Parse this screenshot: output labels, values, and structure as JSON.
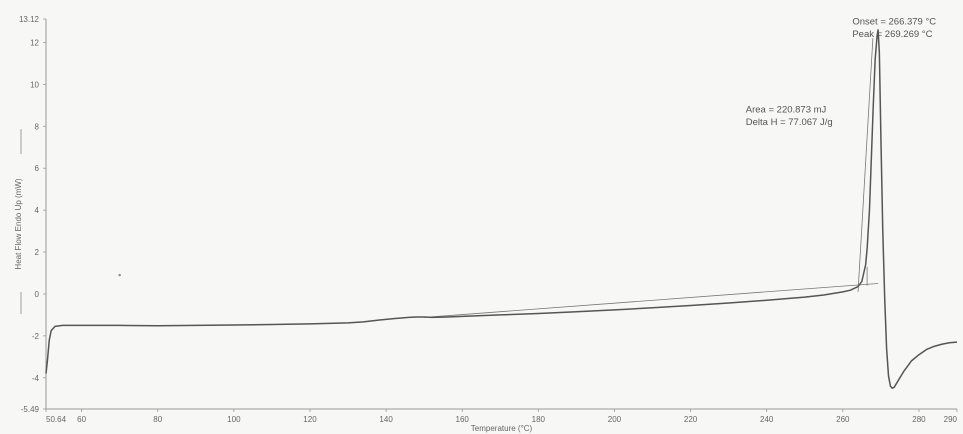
{
  "chart_data": {
    "type": "line",
    "xlabel": "Temperature (°C)",
    "ylabel": "Heat Flow Endo Up (mW)",
    "xlim": [
      50.64,
      290
    ],
    "ylim": [
      -5.49,
      13.12
    ],
    "grid": false,
    "x_ticks": [
      {
        "value": 50.64,
        "label": "50.64"
      },
      {
        "value": 60,
        "label": "60"
      },
      {
        "value": 80,
        "label": "80"
      },
      {
        "value": 100,
        "label": "100"
      },
      {
        "value": 120,
        "label": "120"
      },
      {
        "value": 140,
        "label": "140"
      },
      {
        "value": 160,
        "label": "160"
      },
      {
        "value": 180,
        "label": "180"
      },
      {
        "value": 200,
        "label": "200"
      },
      {
        "value": 220,
        "label": "220"
      },
      {
        "value": 240,
        "label": "240"
      },
      {
        "value": 260,
        "label": "260"
      },
      {
        "value": 280,
        "label": "280"
      },
      {
        "value": 290,
        "label": "290"
      }
    ],
    "y_ticks": [
      {
        "value": 13.12,
        "label": "13.12"
      },
      {
        "value": 12,
        "label": "12"
      },
      {
        "value": 10,
        "label": "10"
      },
      {
        "value": 8,
        "label": "8"
      },
      {
        "value": 6,
        "label": "6"
      },
      {
        "value": 4,
        "label": "4"
      },
      {
        "value": 2,
        "label": "2"
      },
      {
        "value": 0,
        "label": "0"
      },
      {
        "value": -2,
        "label": "-2"
      },
      {
        "value": -4,
        "label": "-4"
      },
      {
        "value": -5.49,
        "label": "-5.49"
      }
    ],
    "series": [
      {
        "x": [
          50.64,
          51.0,
          51.5,
          52.0,
          53.0,
          55.0,
          60,
          70,
          80,
          90,
          100,
          110,
          120,
          130,
          134,
          138,
          142,
          146,
          148,
          150,
          152,
          156,
          160,
          170,
          180,
          190,
          200,
          210,
          220,
          230,
          240,
          250,
          255,
          260,
          262,
          264,
          265,
          266,
          266.4,
          267,
          267.5,
          268,
          268.5,
          269.0,
          269.27,
          269.6,
          270.0,
          270.5,
          271.0,
          271.5,
          272.0,
          272.5,
          273.0,
          273.5,
          274.0,
          275.0,
          276,
          278,
          280,
          282,
          284,
          286,
          288,
          290
        ],
        "y": [
          -3.8,
          -3.2,
          -2.2,
          -1.75,
          -1.55,
          -1.5,
          -1.5,
          -1.5,
          -1.52,
          -1.5,
          -1.48,
          -1.46,
          -1.43,
          -1.38,
          -1.33,
          -1.25,
          -1.18,
          -1.12,
          -1.1,
          -1.1,
          -1.12,
          -1.1,
          -1.07,
          -1.0,
          -0.93,
          -0.85,
          -0.76,
          -0.66,
          -0.55,
          -0.43,
          -0.3,
          -0.15,
          -0.05,
          0.1,
          0.18,
          0.35,
          0.6,
          1.4,
          2.2,
          4.0,
          6.5,
          9.0,
          11.2,
          12.3,
          12.6,
          11.5,
          7.5,
          3.0,
          -0.2,
          -2.6,
          -3.9,
          -4.4,
          -4.5,
          -4.45,
          -4.3,
          -4.0,
          -3.7,
          -3.2,
          -2.9,
          -2.65,
          -2.5,
          -2.4,
          -2.33,
          -2.3
        ]
      }
    ],
    "reference_lines": [
      {
        "x": [
          150,
          269.27
        ],
        "y": [
          -1.12,
          0.5
        ]
      },
      {
        "x": [
          264,
          267.9
        ],
        "y": [
          0.1,
          12.2
        ]
      },
      {
        "x": [
          266.379,
          266.379
        ],
        "y": [
          0.4,
          1.3
        ]
      }
    ],
    "annotations": [
      {
        "text": "Onset = 266.379 °C",
        "x": 262.5,
        "y": 12.85
      },
      {
        "text": "Peak = 269.269 °C",
        "x": 262.5,
        "y": 12.25
      },
      {
        "text": "Area = 220.873 mJ",
        "x": 234.5,
        "y": 8.65
      },
      {
        "text": "Delta H = 77.067 J/g",
        "x": 234.5,
        "y": 8.05
      }
    ],
    "line_color": "#555555"
  }
}
